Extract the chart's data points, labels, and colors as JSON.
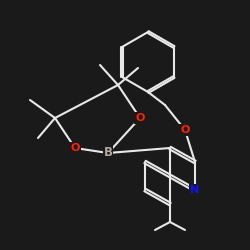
{
  "background": "#1a1a1a",
  "bond_color": "#e8e8e8",
  "atom_colors": {
    "O": "#ff2200",
    "B": "#b0a8a0",
    "N": "#1010ff",
    "C": "#e8e8e8"
  },
  "bond_width": 1.5,
  "figsize": [
    2.5,
    2.5
  ],
  "dpi": 100
}
